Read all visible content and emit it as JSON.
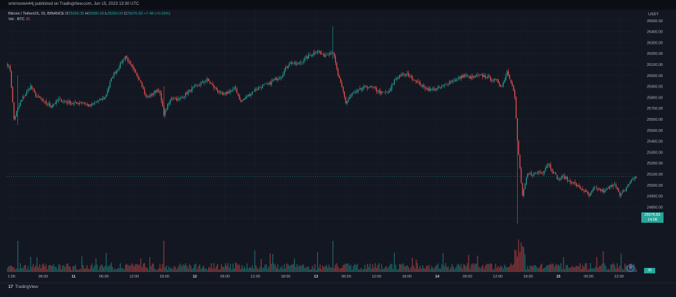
{
  "header": {
    "published": "smirnovwn44j published on TradingView.com, Jun 15, 2023 13:30 UTC"
  },
  "legend": {
    "symbol": "Bitcoin / TetherUS, 15, BINANCE",
    "o_label": "O",
    "o_value": "25069.35",
    "h_label": "H",
    "h_value": "25080.00",
    "l_label": "L",
    "l_value": "25060.00",
    "c_label": "C",
    "c_value": "25076.83",
    "change": "+7.48 (+0.03%)",
    "vol_label": "Vol · BTC",
    "vol_value": "30"
  },
  "footer": {
    "brand": "TradingView"
  },
  "price_axis": {
    "unit": "USDT",
    "current_price": "25076.83",
    "countdown": "14:08",
    "volume_badge": "30"
  },
  "colors": {
    "up": "#26a69a",
    "down": "#ef5350",
    "background": "#131722",
    "grid": "#1e222d",
    "text": "#b2b5be"
  },
  "chart_data": {
    "type": "candlestick",
    "ylim": [
      24600,
      26600
    ],
    "yticks": [
      24700,
      24800,
      24900,
      25000,
      25100,
      25200,
      25300,
      25400,
      25500,
      25600,
      25700,
      25800,
      25900,
      26000,
      26100,
      26200,
      26300,
      26400,
      26500
    ],
    "xtick_labels": [
      "1:00",
      "06:00",
      "11",
      "06:00",
      "12:00",
      "18:00",
      "12",
      "06:00",
      "12:00",
      "18:00",
      "13",
      "06:00",
      "12:00",
      "18:00",
      "14",
      "06:00",
      "12:00",
      "18:00",
      "15",
      "06:00",
      "12:00"
    ],
    "xtick_positions": [
      3,
      24,
      44,
      64,
      84,
      104,
      124,
      144,
      164,
      184,
      204,
      224,
      244,
      264,
      284,
      304,
      324,
      344,
      364,
      384,
      404
    ],
    "n_candles": 416,
    "current_price": 25076.83,
    "price_path": [
      [
        0,
        26100
      ],
      [
        2,
        26050
      ],
      [
        5,
        25600
      ],
      [
        8,
        25700
      ],
      [
        12,
        25800
      ],
      [
        18,
        25900
      ],
      [
        22,
        25820
      ],
      [
        28,
        25760
      ],
      [
        34,
        25720
      ],
      [
        40,
        25780
      ],
      [
        46,
        25760
      ],
      [
        52,
        25740
      ],
      [
        58,
        25760
      ],
      [
        64,
        25720
      ],
      [
        70,
        25760
      ],
      [
        76,
        25800
      ],
      [
        82,
        26000
      ],
      [
        88,
        26100
      ],
      [
        92,
        26180
      ],
      [
        98,
        26050
      ],
      [
        104,
        25950
      ],
      [
        108,
        25800
      ],
      [
        112,
        25820
      ],
      [
        118,
        25880
      ],
      [
        122,
        25650
      ],
      [
        128,
        25800
      ],
      [
        134,
        25780
      ],
      [
        138,
        25820
      ],
      [
        144,
        25880
      ],
      [
        150,
        25920
      ],
      [
        156,
        25960
      ],
      [
        162,
        25880
      ],
      [
        168,
        25820
      ],
      [
        174,
        25860
      ],
      [
        178,
        25880
      ],
      [
        182,
        25760
      ],
      [
        186,
        25800
      ],
      [
        192,
        25860
      ],
      [
        198,
        25900
      ],
      [
        204,
        25920
      ],
      [
        208,
        25960
      ],
      [
        214,
        26000
      ],
      [
        220,
        26120
      ],
      [
        226,
        26100
      ],
      [
        232,
        26150
      ],
      [
        238,
        26200
      ],
      [
        242,
        26230
      ],
      [
        246,
        26180
      ],
      [
        250,
        26200
      ],
      [
        254,
        26220
      ],
      [
        258,
        26000
      ],
      [
        262,
        25850
      ],
      [
        264,
        25750
      ],
      [
        268,
        25820
      ],
      [
        274,
        25860
      ],
      [
        280,
        25900
      ],
      [
        286,
        25880
      ],
      [
        292,
        25840
      ],
      [
        298,
        25850
      ],
      [
        302,
        25960
      ],
      [
        306,
        26000
      ],
      [
        312,
        26010
      ],
      [
        318,
        25960
      ],
      [
        324,
        25900
      ],
      [
        330,
        25870
      ],
      [
        336,
        25880
      ],
      [
        340,
        25900
      ],
      [
        346,
        25950
      ],
      [
        350,
        25960
      ],
      [
        356,
        26000
      ],
      [
        362,
        25980
      ],
      [
        368,
        26000
      ],
      [
        374,
        25990
      ],
      [
        378,
        25960
      ],
      [
        382,
        25950
      ],
      [
        386,
        25900
      ],
      [
        390,
        26040
      ],
      [
        394,
        25920
      ],
      [
        396,
        25800
      ],
      [
        398,
        25400
      ],
      [
        400,
        25150
      ],
      [
        402,
        24900
      ],
      [
        406,
        25100
      ],
      [
        410,
        25100
      ],
      [
        414,
        25120
      ],
      [
        418,
        25120
      ],
      [
        422,
        25200
      ],
      [
        426,
        25120
      ],
      [
        430,
        25050
      ],
      [
        434,
        25080
      ],
      [
        438,
        25040
      ],
      [
        442,
        25020
      ],
      [
        446,
        24980
      ],
      [
        450,
        24950
      ],
      [
        454,
        24900
      ],
      [
        458,
        24970
      ],
      [
        462,
        24960
      ],
      [
        466,
        24940
      ],
      [
        470,
        24980
      ],
      [
        474,
        25020
      ],
      [
        478,
        24900
      ],
      [
        482,
        24960
      ],
      [
        486,
        25030
      ],
      [
        490,
        25077
      ]
    ],
    "spikes": [
      {
        "i": 254,
        "high": 26450,
        "low": 26150
      },
      {
        "i": 122,
        "high": 25900,
        "low": 25620
      },
      {
        "i": 8,
        "high": 26000,
        "low": 25550
      },
      {
        "i": 398,
        "high": 25450,
        "low": 24650
      }
    ]
  }
}
